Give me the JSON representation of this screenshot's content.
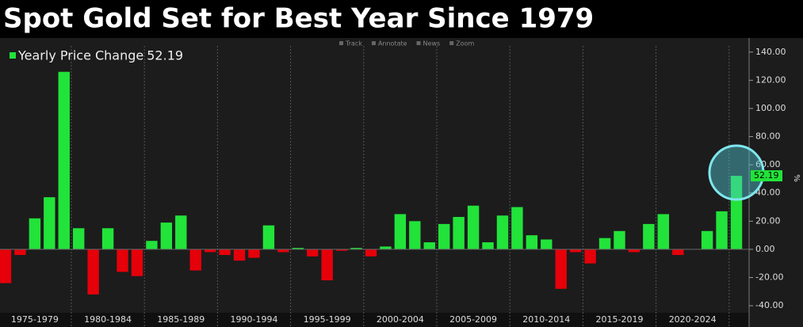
{
  "chart_data": {
    "type": "bar",
    "title": "Spot Gold Set for Best Year Since 1979",
    "toolbar": [
      "Track",
      "Annotate",
      "News",
      "Zoom"
    ],
    "legend": {
      "name": "Yearly Price Change",
      "value": 52.19,
      "color": "#22e33a"
    },
    "y_axis_label": "%",
    "last_value_label": "52.19",
    "groups": [
      "1975-1979",
      "1980-1984",
      "1985-1989",
      "1990-1994",
      "1995-1999",
      "2000-2004",
      "2005-2009",
      "2010-2014",
      "2015-2019",
      "2020-2024"
    ],
    "values": [
      -24,
      -4,
      22,
      37,
      126,
      15,
      -32,
      15,
      -16,
      -19,
      6,
      19,
      24,
      -15,
      -2,
      -4,
      -8,
      -6,
      17,
      -2,
      1,
      -5,
      -22,
      -1,
      1,
      -5,
      2,
      25,
      20,
      5,
      18,
      23,
      31,
      5,
      24,
      30,
      10,
      7,
      -28,
      -2,
      -10,
      8,
      13,
      -2,
      18,
      25,
      -4,
      0,
      13,
      27,
      52.19
    ],
    "positive_color": "#22e33a",
    "negative_color": "#e5000a",
    "ylim": [
      -45,
      150
    ],
    "yticks": [
      {
        "value": -40,
        "label": "-40.00"
      },
      {
        "value": -20,
        "label": "-20.00"
      },
      {
        "value": 0,
        "label": "0.00"
      },
      {
        "value": 20,
        "label": "20.00"
      },
      {
        "value": 40,
        "label": "40.00"
      },
      {
        "value": 60,
        "label": "60.00"
      },
      {
        "value": 80,
        "label": "80.00"
      },
      {
        "value": 100,
        "label": "100.00"
      },
      {
        "value": 120,
        "label": "120.00"
      },
      {
        "value": 140,
        "label": "140.00"
      }
    ]
  }
}
